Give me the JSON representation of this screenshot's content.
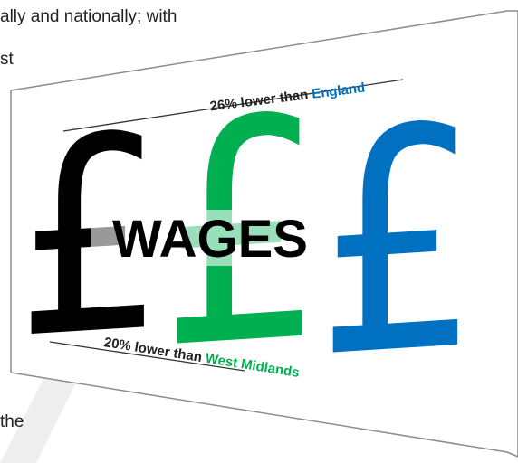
{
  "document": {
    "lines": [
      "ally and nationally; with",
      "st",
      "the"
    ],
    "infographic": {
      "top_caption": {
        "text": "26% lower than",
        "highlight": "England"
      },
      "bottom_caption": {
        "text": "20% lower than",
        "highlight": "West Midlands"
      },
      "symbols": [
        "£",
        "£",
        "£"
      ],
      "center_label": "WAGES"
    }
  }
}
